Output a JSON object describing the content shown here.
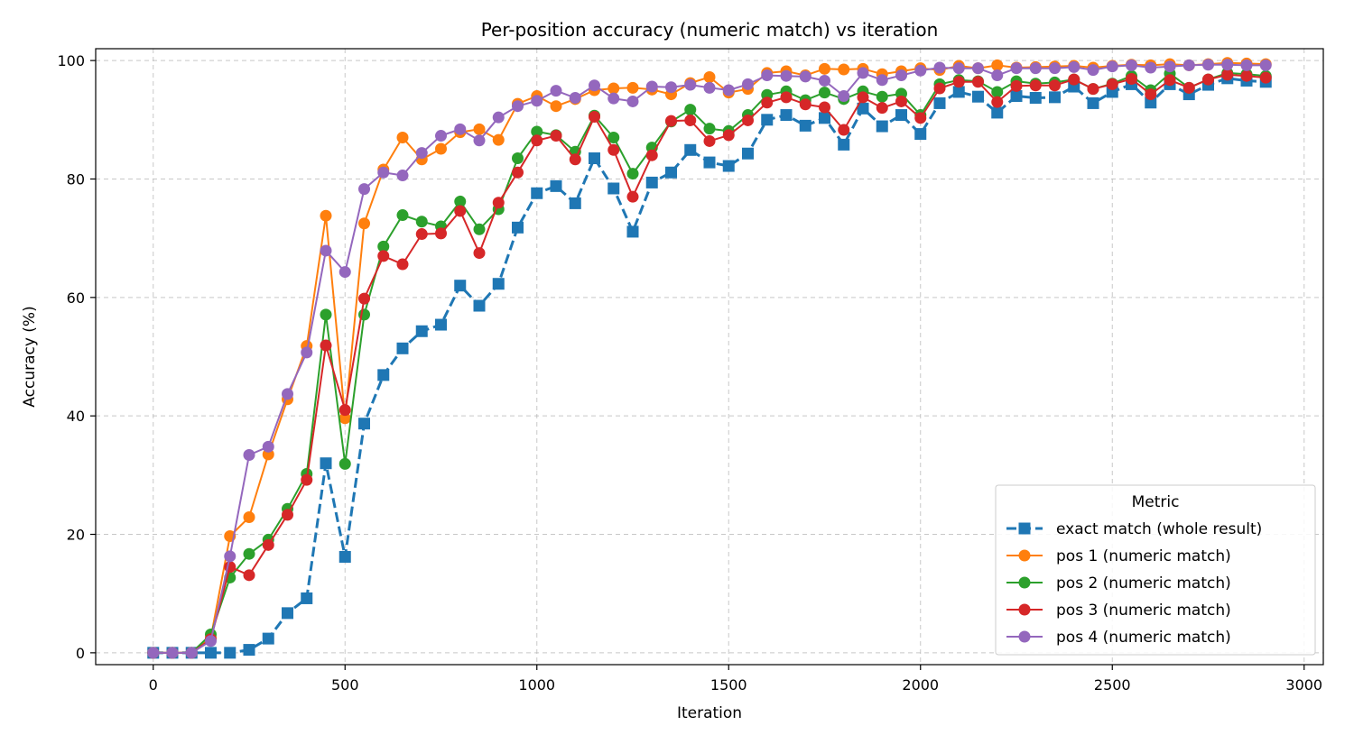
{
  "chart_data": {
    "type": "line",
    "title": "Per-position accuracy (numeric match) vs iteration",
    "xlabel": "Iteration",
    "ylabel": "Accuracy (%)",
    "xlim": [
      -150,
      3050
    ],
    "ylim": [
      -2,
      102
    ],
    "x_ticks": [
      0,
      500,
      1000,
      1500,
      2000,
      2500,
      3000
    ],
    "y_ticks": [
      0,
      20,
      40,
      60,
      80,
      100
    ],
    "grid": true,
    "legend": {
      "title": "Metric",
      "placement": "lower-right"
    },
    "x": [
      0,
      50,
      100,
      150,
      200,
      250,
      300,
      350,
      400,
      450,
      500,
      550,
      600,
      650,
      700,
      750,
      800,
      850,
      900,
      950,
      1000,
      1050,
      1100,
      1150,
      1200,
      1250,
      1300,
      1350,
      1400,
      1450,
      1500,
      1550,
      1600,
      1650,
      1700,
      1750,
      1800,
      1850,
      1900,
      1950,
      2000,
      2050,
      2100,
      2150,
      2200,
      2250,
      2300,
      2350,
      2400,
      2450,
      2500,
      2550,
      2600,
      2650,
      2700,
      2750,
      2800,
      2850,
      2900
    ],
    "series": [
      {
        "name": "exact match (whole result)",
        "color": "#1f77b4",
        "marker": "square",
        "dashed": true,
        "values": [
          0,
          0,
          0,
          0,
          0,
          0.5,
          2.4,
          6.7,
          9.2,
          32.0,
          16.2,
          38.7,
          46.9,
          51.4,
          54.3,
          55.4,
          62.0,
          58.6,
          62.3,
          71.8,
          77.6,
          78.8,
          75.9,
          83.5,
          78.4,
          71.1,
          79.4,
          81.1,
          84.9,
          82.8,
          82.2,
          84.3,
          90.0,
          90.8,
          89.0,
          90.3,
          85.8,
          91.9,
          88.9,
          90.8,
          87.6,
          92.8,
          94.7,
          93.9,
          91.2,
          94.0,
          93.7,
          93.8,
          95.6,
          92.8,
          94.7,
          96.0,
          92.9,
          96.0,
          94.3,
          95.9,
          97.0,
          96.6,
          96.4
        ]
      },
      {
        "name": "pos 1 (numeric match)",
        "color": "#ff7f0e",
        "marker": "circle",
        "dashed": false,
        "values": [
          0,
          0,
          0,
          2.5,
          19.7,
          22.9,
          33.5,
          42.8,
          51.8,
          73.8,
          39.6,
          72.5,
          81.6,
          87.0,
          83.3,
          85.1,
          87.9,
          88.4,
          86.6,
          92.7,
          94.0,
          92.3,
          93.5,
          95.0,
          95.3,
          95.4,
          95.1,
          94.3,
          96.2,
          97.2,
          94.6,
          95.2,
          97.9,
          98.2,
          97.5,
          98.6,
          98.5,
          98.6,
          97.7,
          98.2,
          98.7,
          98.4,
          99.1,
          98.7,
          99.2,
          98.8,
          98.9,
          99.0,
          99.1,
          98.8,
          99.1,
          99.3,
          99.2,
          99.4,
          99.2,
          99.4,
          99.6,
          99.5,
          99.4
        ]
      },
      {
        "name": "pos 2 (numeric match)",
        "color": "#2ca02c",
        "marker": "circle",
        "dashed": false,
        "values": [
          0,
          0,
          0,
          3.1,
          12.7,
          16.7,
          19.1,
          24.3,
          30.2,
          57.1,
          31.9,
          57.1,
          68.6,
          73.9,
          72.8,
          72.0,
          76.2,
          71.5,
          74.9,
          83.5,
          88.0,
          87.4,
          84.6,
          90.7,
          87.0,
          80.9,
          85.3,
          89.7,
          91.7,
          88.5,
          88.1,
          90.8,
          94.2,
          94.8,
          93.3,
          94.6,
          93.5,
          94.8,
          93.9,
          94.4,
          90.8,
          96.0,
          96.7,
          96.5,
          94.7,
          96.5,
          96.1,
          96.3,
          96.8,
          95.2,
          96.1,
          97.4,
          95.0,
          97.8,
          95.4,
          96.8,
          97.9,
          97.7,
          97.4
        ]
      },
      {
        "name": "pos 3 (numeric match)",
        "color": "#d62728",
        "marker": "circle",
        "dashed": false,
        "values": [
          0,
          0,
          0,
          2.3,
          14.5,
          13.1,
          18.2,
          23.3,
          29.2,
          51.9,
          41.0,
          59.8,
          67.0,
          65.6,
          70.7,
          70.8,
          74.6,
          67.5,
          76.0,
          81.1,
          86.5,
          87.3,
          83.3,
          90.5,
          84.9,
          77.0,
          84.0,
          89.8,
          89.9,
          86.4,
          87.4,
          89.9,
          92.9,
          93.8,
          92.6,
          92.1,
          88.3,
          93.8,
          92.0,
          93.1,
          90.3,
          95.3,
          96.4,
          96.4,
          93.0,
          95.7,
          95.8,
          95.8,
          96.8,
          95.2,
          96.0,
          96.9,
          94.3,
          96.7,
          95.4,
          96.8,
          97.6,
          97.4,
          97.1
        ]
      },
      {
        "name": "pos 4 (numeric match)",
        "color": "#9467bd",
        "marker": "circle",
        "dashed": false,
        "values": [
          0,
          0,
          0,
          2.0,
          16.3,
          33.4,
          34.8,
          43.7,
          50.7,
          67.9,
          64.3,
          78.3,
          81.1,
          80.6,
          84.4,
          87.3,
          88.4,
          86.5,
          90.4,
          92.3,
          93.2,
          94.9,
          93.7,
          95.8,
          93.6,
          93.1,
          95.6,
          95.5,
          95.9,
          95.4,
          95.0,
          96.0,
          97.5,
          97.4,
          97.3,
          96.6,
          94.0,
          97.9,
          96.7,
          97.5,
          98.3,
          98.8,
          98.7,
          98.7,
          97.5,
          98.7,
          98.7,
          98.7,
          98.9,
          98.4,
          99.0,
          99.2,
          98.8,
          99.0,
          99.2,
          99.3,
          99.3,
          99.2,
          99.2
        ]
      }
    ]
  }
}
